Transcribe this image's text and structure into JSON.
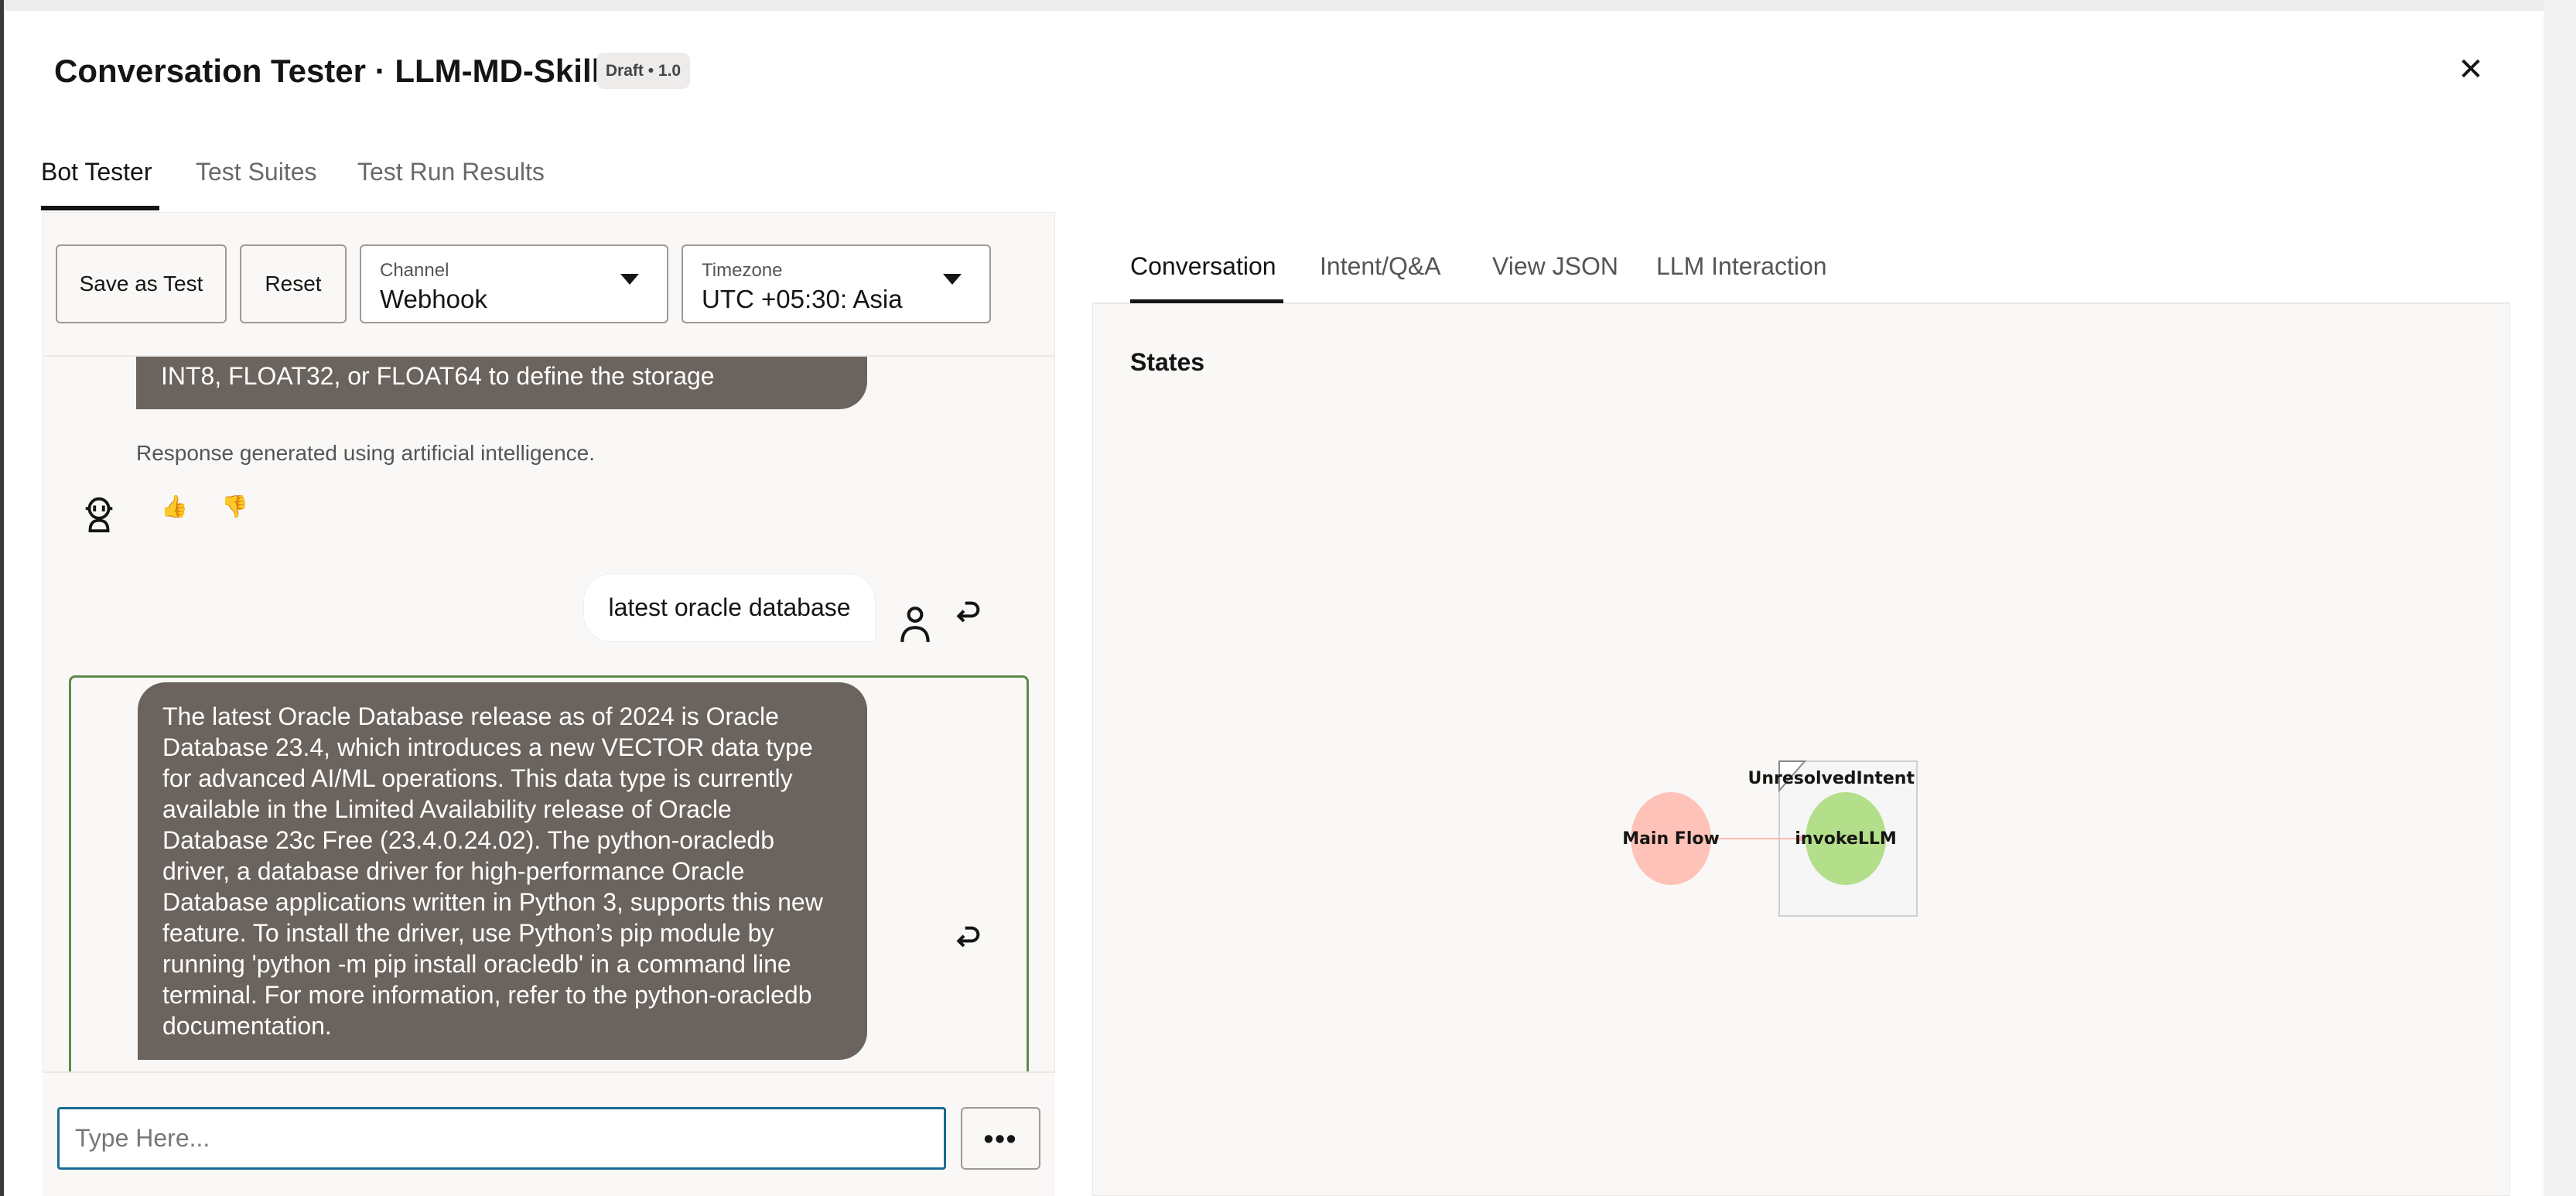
{
  "header": {
    "title": "Conversation Tester · LLM-MD-Skill",
    "badge": "Draft • 1.0",
    "close_icon": "close-icon"
  },
  "main_tabs": [
    {
      "label": "Bot Tester",
      "active": true
    },
    {
      "label": "Test Suites"
    },
    {
      "label": "Test Run Results"
    }
  ],
  "toolbar": {
    "save_label": "Save as Test",
    "reset_label": "Reset",
    "channel": {
      "label": "Channel",
      "value": "Webhook"
    },
    "timezone": {
      "label": "Timezone",
      "value": "UTC +05:30: Asia"
    }
  },
  "chat": {
    "prev_bot_tail": "INT8, FLOAT32, or FLOAT64 to define the storage",
    "disclaimer": "Response generated using artificial intelligence.",
    "thumbs_up": "👍",
    "thumbs_down": "👎",
    "user_message": "latest oracle database",
    "bot_message": "The latest Oracle Database release as of 2024 is Oracle Database 23.4, which introduces a new VECTOR data type for advanced AI/ML operations. This data type is currently available in the Limited Availability release of Oracle Database 23c Free (23.4.0.24.02). The python-oracledb driver, a database driver for high-performance Oracle Database applications written in Python 3, supports this new feature. To install the driver, use Python’s pip module by running 'python -m pip install oracledb' in a command line terminal. For more information, refer to the python-oracledb documentation.",
    "input_placeholder": "Type Here...",
    "more_label": "•••"
  },
  "right_tabs": [
    {
      "label": "Conversation",
      "active": true
    },
    {
      "label": "Intent/Q&A"
    },
    {
      "label": "View JSON"
    },
    {
      "label": "LLM Interaction"
    }
  ],
  "states": {
    "title": "States",
    "nodes": [
      {
        "label": "Main Flow",
        "color": "#ffc2b9"
      },
      {
        "label": "invokeLLM",
        "color": "#b3df8a"
      }
    ],
    "group_label": "UnresolvedIntent",
    "edge_color": "#ffb8ae"
  },
  "colors": {
    "bot_bubble": "#6b635d",
    "input_focus": "#1b6c93",
    "selected_message": "#5e8a4a"
  }
}
